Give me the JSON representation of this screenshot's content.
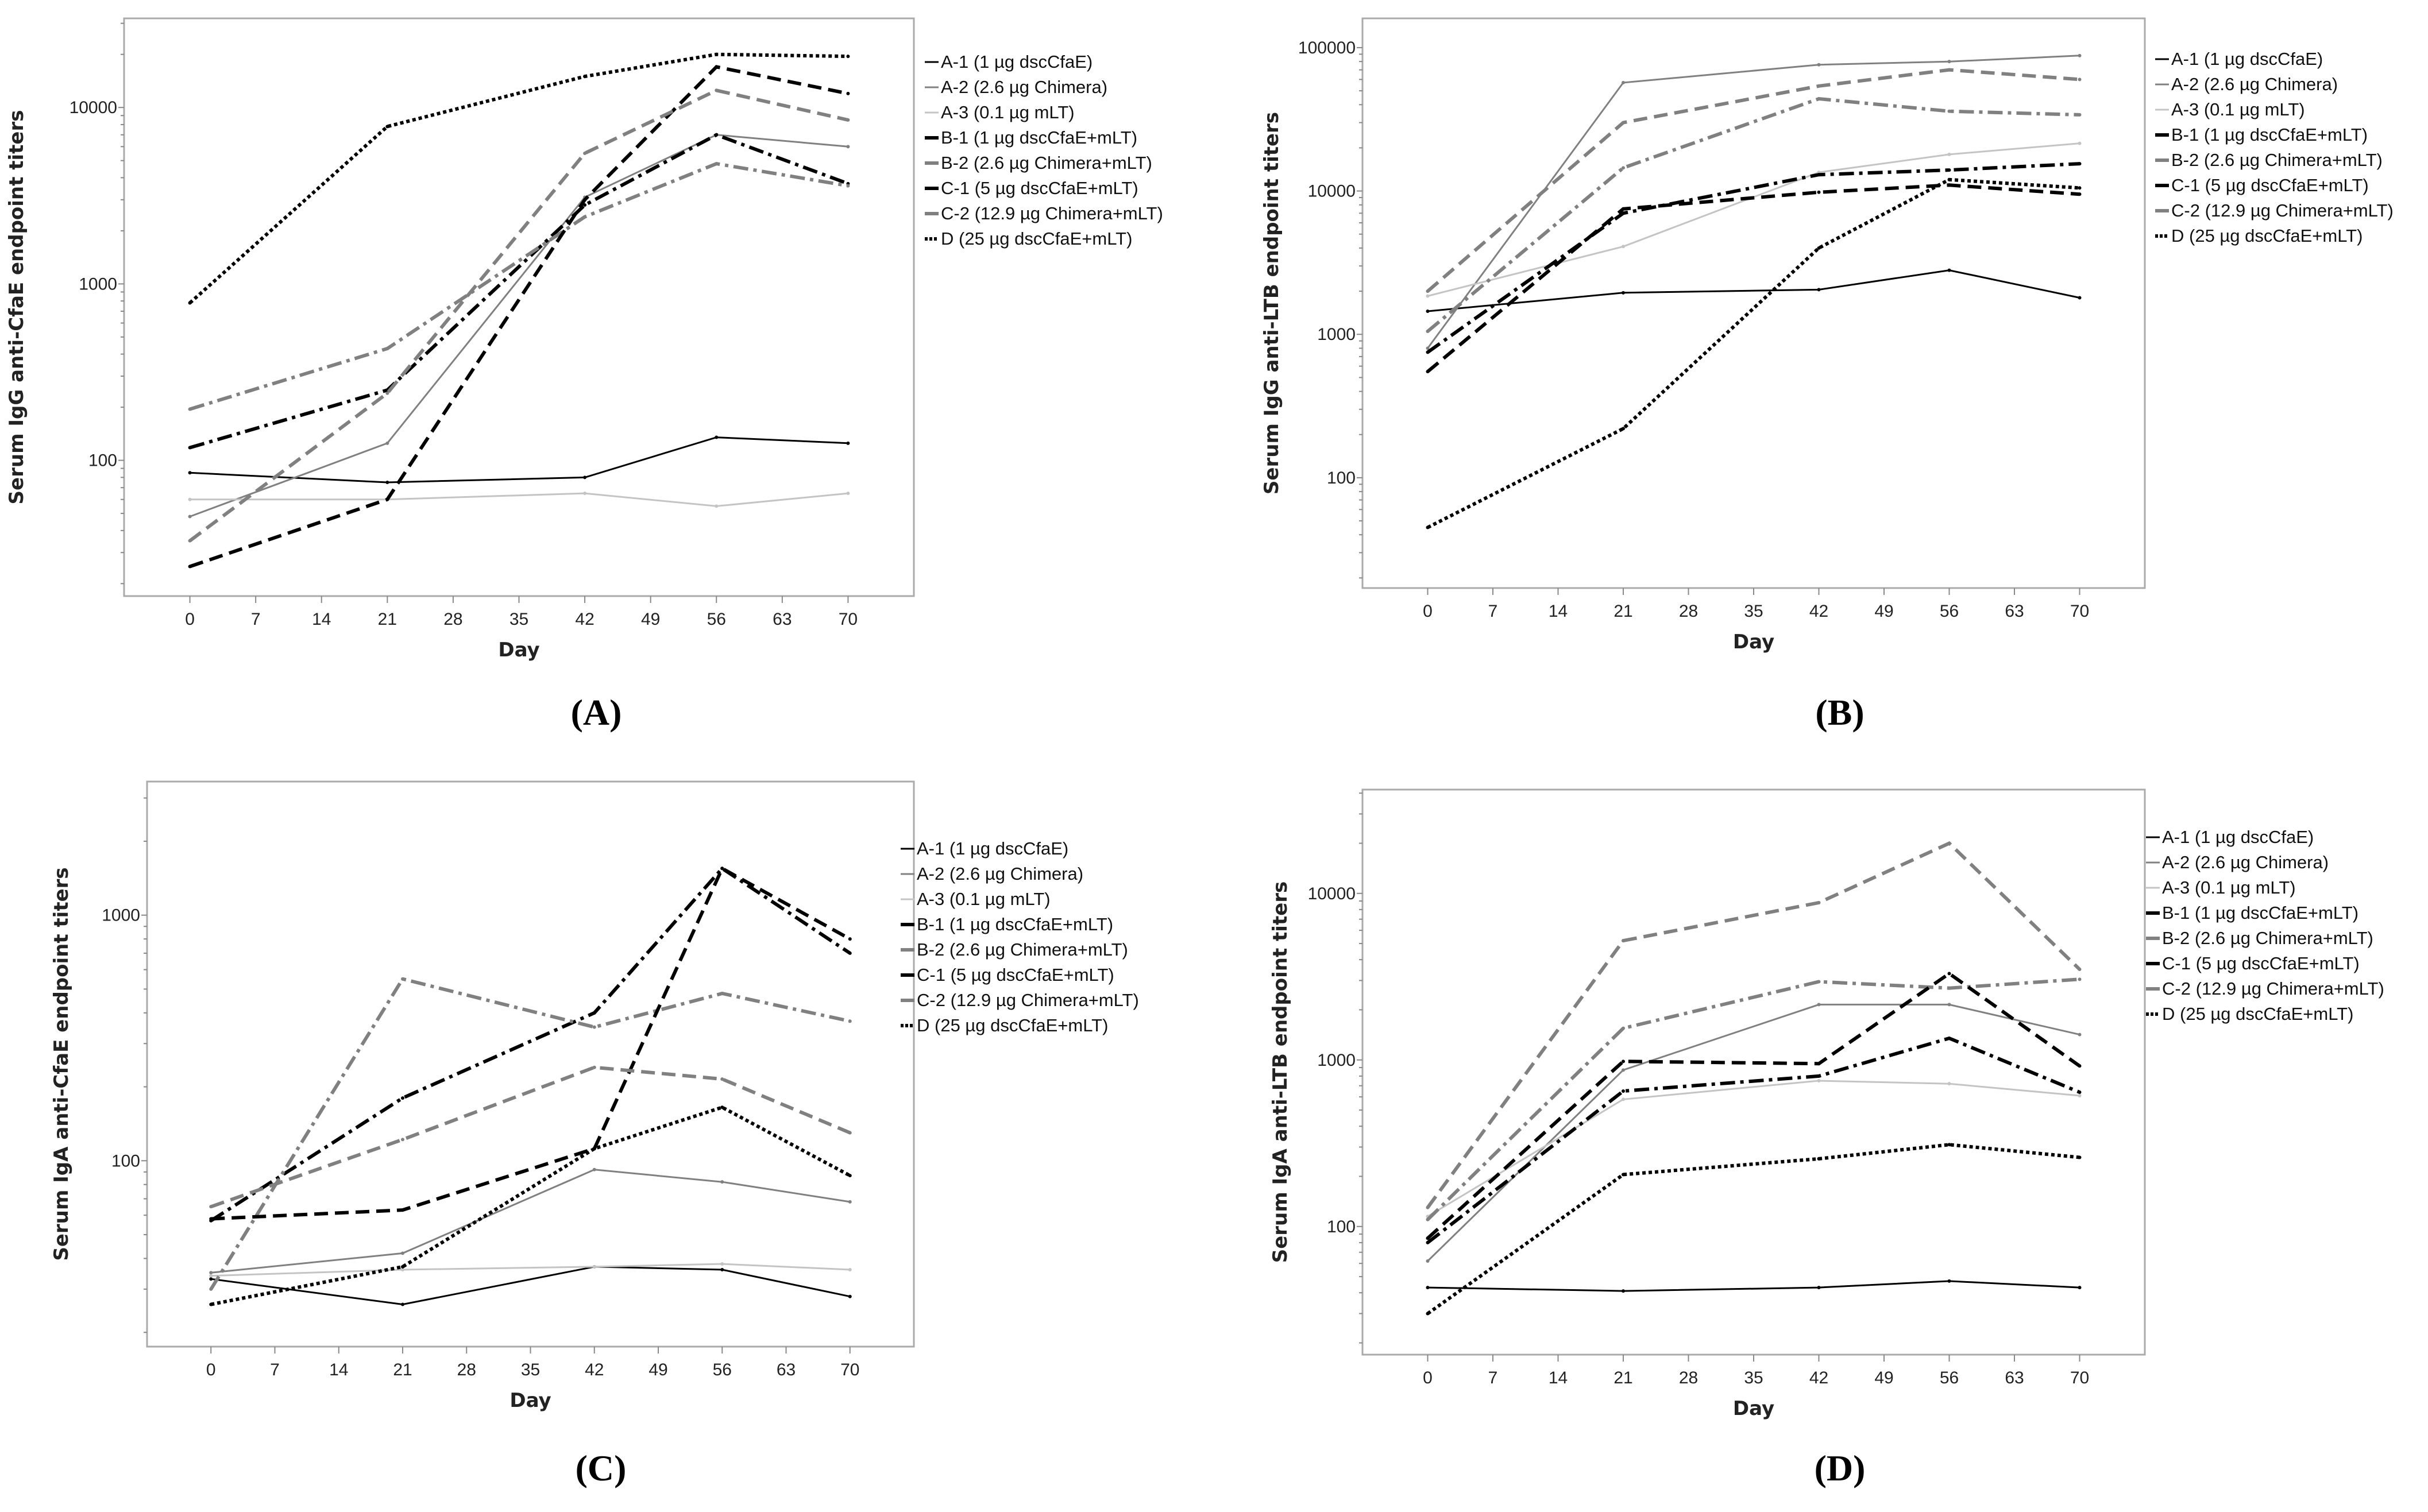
{
  "legend": [
    "A-1 (1 µg dscCfaE)",
    "A-2 (2.6 µg Chimera)",
    "A-3 (0.1 µg mLT)",
    "B-1 (1 µg dscCfaE+mLT)",
    "B-2 (2.6 µg Chimera+mLT)",
    "C-1 (5 µg dscCfaE+mLT)",
    "C-2 (12.9 µg Chimera+mLT)",
    "D (25 µg dscCfaE+mLT)"
  ],
  "series_styles": [
    {
      "color": "#000000",
      "dash": "solid"
    },
    {
      "color": "#808080",
      "dash": "solid"
    },
    {
      "color": "#c4c4c4",
      "dash": "solid"
    },
    {
      "color": "#000000",
      "dash": "dashdot"
    },
    {
      "color": "#808080",
      "dash": "dashdot"
    },
    {
      "color": "#000000",
      "dash": "dashed"
    },
    {
      "color": "#808080",
      "dash": "dashed"
    },
    {
      "color": "#000000",
      "dash": "dotted"
    }
  ],
  "chart_data": [
    {
      "type": "line",
      "panel_label": "(A)",
      "title": "",
      "xlabel": "Day",
      "ylabel": "Serum IgG anti-CfaE endpoint titers",
      "yscale": "log",
      "ylim": [
        17,
        32000
      ],
      "xlim": [
        -7,
        77
      ],
      "xticks": [
        0,
        7,
        14,
        21,
        28,
        35,
        42,
        49,
        56,
        63,
        70
      ],
      "yticks": [
        100,
        1000,
        10000
      ],
      "ytick_labels": [
        "100",
        "1000",
        "10000"
      ],
      "x": [
        0,
        21,
        42,
        56,
        70
      ],
      "legend_position": "right",
      "series": [
        {
          "name": "A-1 (1 µg dscCfaE)",
          "values": [
            85,
            75,
            80,
            135,
            125
          ]
        },
        {
          "name": "A-2 (2.6 µg Chimera)",
          "values": [
            48,
            125,
            3100,
            7000,
            6000
          ]
        },
        {
          "name": "A-3 (0.1 µg mLT)",
          "values": [
            60,
            60,
            65,
            55,
            65
          ]
        },
        {
          "name": "B-1 (1 µg dscCfaE+mLT)",
          "values": [
            118,
            250,
            2800,
            7000,
            3700
          ]
        },
        {
          "name": "B-2 (2.6 µg Chimera+mLT)",
          "values": [
            195,
            430,
            2400,
            4800,
            3600
          ]
        },
        {
          "name": "C-1 (5 µg dscCfaE+mLT)",
          "values": [
            25,
            60,
            3000,
            17000,
            12000
          ]
        },
        {
          "name": "C-2 (12.9 µg Chimera+mLT)",
          "values": [
            35,
            240,
            5500,
            12500,
            8500
          ]
        },
        {
          "name": "D (25 µg dscCfaE+mLT)",
          "values": [
            780,
            7800,
            15000,
            20000,
            19500
          ]
        }
      ]
    },
    {
      "type": "line",
      "panel_label": "(B)",
      "title": "",
      "xlabel": "Day",
      "ylabel": "Serum IgG anti-LTB endpoint titers",
      "yscale": "log",
      "ylim": [
        17,
        160000
      ],
      "xlim": [
        -7,
        77
      ],
      "xticks": [
        0,
        7,
        14,
        21,
        28,
        35,
        42,
        49,
        56,
        63,
        70
      ],
      "yticks": [
        100,
        1000,
        10000,
        100000
      ],
      "ytick_labels": [
        "100",
        "1000",
        "10000",
        "100000"
      ],
      "x": [
        0,
        21,
        42,
        56,
        70
      ],
      "legend_position": "right",
      "series": [
        {
          "name": "A-1 (1 µg dscCfaE)",
          "values": [
            1450,
            1950,
            2050,
            2800,
            1800
          ]
        },
        {
          "name": "A-2 (2.6 µg Chimera)",
          "values": [
            800,
            57000,
            76000,
            80000,
            88000
          ]
        },
        {
          "name": "A-3 (0.1 µg mLT)",
          "values": [
            1850,
            4100,
            13500,
            18000,
            21500
          ]
        },
        {
          "name": "B-1 (1 µg dscCfaE+mLT)",
          "values": [
            750,
            7000,
            13000,
            14000,
            15500
          ]
        },
        {
          "name": "B-2 (2.6 µg Chimera+mLT)",
          "values": [
            1050,
            14500,
            44000,
            36000,
            34000
          ]
        },
        {
          "name": "C-1 (5 µg dscCfaE+mLT)",
          "values": [
            550,
            7500,
            9800,
            11000,
            9500
          ]
        },
        {
          "name": "C-2 (12.9 µg Chimera+mLT)",
          "values": [
            2000,
            30000,
            54000,
            70000,
            60000
          ]
        },
        {
          "name": "D (25 µg dscCfaE+mLT)",
          "values": [
            45,
            220,
            4000,
            12000,
            10500
          ]
        }
      ]
    },
    {
      "type": "line",
      "panel_label": "(C)",
      "title": "",
      "xlabel": "Day",
      "ylabel": "Serum IgA anti-CfaE endpoint titers",
      "yscale": "log",
      "ylim": [
        17.5,
        3500
      ],
      "xlim": [
        -7,
        77
      ],
      "xticks": [
        0,
        7,
        14,
        21,
        28,
        35,
        42,
        49,
        56,
        63,
        70
      ],
      "yticks": [
        100,
        1000
      ],
      "ytick_labels": [
        "100",
        "1000"
      ],
      "x": [
        0,
        21,
        42,
        56,
        70
      ],
      "legend_position": "right",
      "series": [
        {
          "name": "A-1 (1 µg dscCfaE)",
          "values": [
            33,
            26,
            37,
            36,
            28
          ]
        },
        {
          "name": "A-2 (2.6 µg Chimera)",
          "values": [
            35,
            42,
            92,
            82,
            68
          ]
        },
        {
          "name": "A-3 (0.1 µg mLT)",
          "values": [
            34,
            36,
            37,
            38,
            36
          ]
        },
        {
          "name": "B-1 (1 µg dscCfaE+mLT)",
          "values": [
            57,
            180,
            400,
            1550,
            700
          ]
        },
        {
          "name": "B-2 (2.6 µg Chimera+mLT)",
          "values": [
            30,
            550,
            350,
            480,
            370
          ]
        },
        {
          "name": "C-1 (5 µg dscCfaE+mLT)",
          "values": [
            58,
            63,
            112,
            1550,
            800
          ]
        },
        {
          "name": "C-2 (12.9 µg Chimera+mLT)",
          "values": [
            65,
            122,
            240,
            215,
            130
          ]
        },
        {
          "name": "D (25 µg dscCfaE+mLT)",
          "values": [
            26,
            37,
            112,
            165,
            87
          ]
        }
      ]
    },
    {
      "type": "line",
      "panel_label": "(D)",
      "title": "",
      "xlabel": "Day",
      "ylabel": "Serum IgA anti-LTB endpoint titers",
      "yscale": "log",
      "ylim": [
        17,
        42000
      ],
      "xlim": [
        -7,
        77
      ],
      "xticks": [
        0,
        7,
        14,
        21,
        28,
        35,
        42,
        49,
        56,
        63,
        70
      ],
      "yticks": [
        100,
        1000,
        10000
      ],
      "ytick_labels": [
        "100",
        "1000",
        "10000"
      ],
      "x": [
        0,
        21,
        42,
        56,
        70
      ],
      "legend_position": "right",
      "series": [
        {
          "name": "A-1 (1 µg dscCfaE)",
          "values": [
            43,
            41,
            43,
            47,
            43
          ]
        },
        {
          "name": "A-2 (2.6 µg Chimera)",
          "values": [
            62,
            870,
            2150,
            2150,
            1420
          ]
        },
        {
          "name": "A-3 (0.1 µg mLT)",
          "values": [
            115,
            580,
            750,
            720,
            610
          ]
        },
        {
          "name": "B-1 (1 µg dscCfaE+mLT)",
          "values": [
            80,
            650,
            800,
            1350,
            640
          ]
        },
        {
          "name": "B-2 (2.6 µg Chimera+mLT)",
          "values": [
            110,
            1550,
            2950,
            2700,
            3050
          ]
        },
        {
          "name": "C-1 (5 µg dscCfaE+mLT)",
          "values": [
            85,
            980,
            950,
            3300,
            920
          ]
        },
        {
          "name": "C-2 (12.9 µg Chimera+mLT)",
          "values": [
            130,
            5200,
            8800,
            20000,
            3500
          ]
        },
        {
          "name": "D (25 µg dscCfaE+mLT)",
          "values": [
            30,
            205,
            255,
            310,
            260
          ]
        }
      ]
    }
  ]
}
